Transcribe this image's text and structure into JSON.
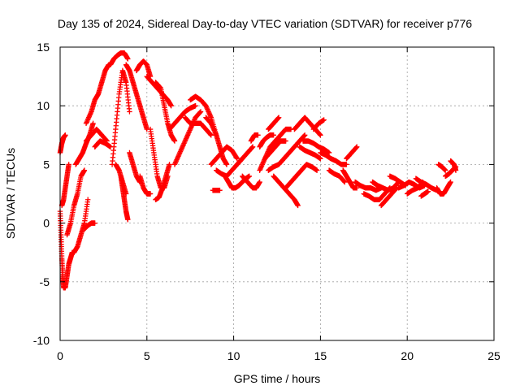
{
  "chart_data": {
    "type": "scatter",
    "title": "Day 135 of 2024, Sidereal Day-to-day VTEC variation (SDTVAR) for receiver p776",
    "xlabel": "GPS time / hours",
    "ylabel": "SDTVAR / TECUs",
    "xlim": [
      0,
      25
    ],
    "ylim": [
      -10,
      15
    ],
    "xticks": [
      "0",
      "5",
      "10",
      "15",
      "20",
      "25"
    ],
    "yticks": [
      "-10",
      "-5",
      "0",
      "5",
      "10",
      "15"
    ],
    "grid": true,
    "marker": "plus",
    "series": [
      {
        "name": "SDTVAR",
        "color": "#ff0000",
        "tracks": [
          {
            "x": [
              0.0,
              0.1,
              0.2,
              0.3
            ],
            "y": [
              6.0,
              6.8,
              7.3,
              7.5
            ]
          },
          {
            "x": [
              0.0,
              0.05,
              0.1,
              0.15,
              0.2,
              0.3,
              0.4,
              0.5,
              0.6,
              0.7,
              0.8
            ],
            "y": [
              1.0,
              -1.0,
              -3.0,
              -4.5,
              -5.5,
              -5.5,
              -4.5,
              -3.5,
              -3.0,
              -2.5,
              -2.5
            ]
          },
          {
            "x": [
              0.1,
              0.2,
              0.3,
              0.4,
              0.5
            ],
            "y": [
              1.5,
              2.0,
              3.0,
              4.0,
              5.0
            ]
          },
          {
            "x": [
              0.4,
              0.6,
              0.8,
              1.0,
              1.2,
              1.4
            ],
            "y": [
              -1.0,
              0.0,
              1.5,
              2.5,
              4.0,
              4.5
            ]
          },
          {
            "x": [
              0.8,
              1.0,
              1.2,
              1.4,
              1.6
            ],
            "y": [
              -2.5,
              -2.0,
              -1.0,
              0.0,
              2.0
            ]
          },
          {
            "x": [
              1.4,
              1.6,
              1.8,
              2.0
            ],
            "y": [
              -0.5,
              -0.2,
              0.0,
              0.0
            ]
          },
          {
            "x": [
              0.9,
              1.1,
              1.3,
              1.5,
              1.7,
              1.9
            ],
            "y": [
              5.0,
              5.5,
              6.0,
              6.8,
              7.5,
              8.5
            ]
          },
          {
            "x": [
              1.5,
              1.8,
              2.0,
              2.2,
              2.4,
              2.6,
              2.8
            ],
            "y": [
              8.5,
              9.5,
              10.5,
              11.0,
              12.0,
              13.0,
              13.5
            ]
          },
          {
            "x": [
              1.5,
              1.8,
              2.1,
              2.4,
              2.7
            ],
            "y": [
              7.0,
              7.5,
              8.0,
              7.5,
              7.0
            ]
          },
          {
            "x": [
              2.0,
              2.3,
              2.6,
              2.9
            ],
            "y": [
              6.5,
              7.0,
              6.8,
              6.5
            ]
          },
          {
            "x": [
              2.9,
              3.1,
              3.3,
              3.5,
              3.7,
              3.9
            ],
            "y": [
              13.5,
              14.0,
              14.3,
              14.5,
              14.5,
              14.0
            ]
          },
          {
            "x": [
              3.0,
              3.2,
              3.4,
              3.6,
              3.8,
              4.0
            ],
            "y": [
              5.0,
              8.0,
              11.0,
              13.0,
              12.0,
              9.5
            ]
          },
          {
            "x": [
              3.5,
              3.6,
              3.7,
              3.8,
              3.9
            ],
            "y": [
              4.0,
              3.0,
              2.0,
              1.0,
              0.3
            ]
          },
          {
            "x": [
              3.2,
              3.4,
              3.6,
              3.8
            ],
            "y": [
              5.0,
              4.5,
              3.5,
              2.5
            ]
          },
          {
            "x": [
              3.8,
              4.0,
              4.2,
              4.4,
              4.6,
              4.8,
              5.0
            ],
            "y": [
              13.5,
              13.0,
              12.0,
              11.0,
              10.0,
              9.0,
              8.0
            ]
          },
          {
            "x": [
              4.0,
              4.2,
              4.4,
              4.6
            ],
            "y": [
              6.0,
              5.0,
              4.0,
              3.5
            ]
          },
          {
            "x": [
              4.4,
              4.6,
              4.8,
              5.0,
              5.2
            ],
            "y": [
              13.0,
              13.5,
              13.8,
              13.5,
              12.5
            ]
          },
          {
            "x": [
              4.6,
              4.8,
              5.0,
              5.2
            ],
            "y": [
              4.0,
              3.0,
              2.5,
              2.5
            ]
          },
          {
            "x": [
              5.0,
              5.3,
              5.6,
              5.9,
              6.2,
              6.4
            ],
            "y": [
              12.5,
              12.0,
              11.5,
              11.0,
              10.5,
              10.0
            ]
          },
          {
            "x": [
              5.2,
              5.4,
              5.6,
              5.8,
              6.0,
              6.2
            ],
            "y": [
              8.0,
              6.0,
              4.0,
              3.0,
              3.0,
              4.0
            ]
          },
          {
            "x": [
              5.5,
              5.7,
              5.9,
              6.1,
              6.3
            ],
            "y": [
              2.0,
              2.2,
              3.0,
              4.0,
              5.0
            ]
          },
          {
            "x": [
              5.5,
              5.8,
              6.0,
              6.2,
              6.4,
              6.6
            ],
            "y": [
              12.0,
              11.5,
              10.0,
              8.5,
              7.5,
              7.0
            ]
          },
          {
            "x": [
              6.3,
              6.6,
              6.9,
              7.2,
              7.5,
              7.8
            ],
            "y": [
              8.0,
              8.5,
              9.0,
              9.5,
              9.8,
              10.0
            ]
          },
          {
            "x": [
              6.6,
              6.9,
              7.2,
              7.5,
              7.8,
              8.1
            ],
            "y": [
              5.0,
              6.0,
              7.0,
              8.0,
              9.0,
              9.5
            ]
          },
          {
            "x": [
              7.5,
              7.8,
              8.1,
              8.4,
              8.7,
              9.0
            ],
            "y": [
              10.5,
              10.8,
              10.5,
              10.0,
              9.0,
              7.5
            ]
          },
          {
            "x": [
              7.2,
              7.5,
              7.8,
              8.1,
              8.4,
              8.7
            ],
            "y": [
              9.0,
              8.5,
              8.5,
              8.5,
              8.0,
              7.5
            ]
          },
          {
            "x": [
              8.4,
              8.7,
              9.0,
              9.2,
              9.4,
              9.6
            ],
            "y": [
              9.0,
              8.5,
              7.5,
              6.5,
              5.5,
              5.0
            ]
          },
          {
            "x": [
              8.8,
              9.0,
              9.2
            ],
            "y": [
              2.8,
              2.8,
              2.8
            ]
          },
          {
            "x": [
              8.7,
              9.0,
              9.3,
              9.6,
              9.9,
              10.2
            ],
            "y": [
              5.0,
              5.5,
              6.0,
              6.5,
              6.2,
              5.5
            ]
          },
          {
            "x": [
              9.0,
              9.3,
              9.6,
              9.9,
              10.2,
              10.5
            ],
            "y": [
              4.5,
              4.2,
              4.0,
              4.5,
              5.0,
              5.5
            ]
          },
          {
            "x": [
              9.5,
              9.7,
              9.9,
              10.1,
              10.3,
              10.5,
              10.7,
              10.9
            ],
            "y": [
              4.0,
              3.5,
              3.0,
              3.0,
              3.2,
              3.5,
              3.8,
              4.0
            ]
          },
          {
            "x": [
              10.2,
              10.5,
              10.8,
              11.1
            ],
            "y": [
              5.0,
              5.5,
              6.0,
              6.5
            ]
          },
          {
            "x": [
              10.5,
              10.8,
              11.1,
              11.3,
              11.5
            ],
            "y": [
              4.0,
              3.5,
              3.0,
              3.0,
              3.5
            ]
          },
          {
            "x": [
              11.0,
              11.2,
              11.4
            ],
            "y": [
              7.0,
              7.5,
              7.5
            ]
          },
          {
            "x": [
              11.5,
              11.8,
              12.1,
              12.4,
              12.7,
              13.0,
              13.3
            ],
            "y": [
              4.5,
              5.5,
              6.5,
              7.0,
              7.5,
              8.0,
              8.0
            ]
          },
          {
            "x": [
              11.5,
              11.7,
              11.9,
              12.1,
              12.3
            ],
            "y": [
              6.5,
              7.0,
              7.3,
              7.5,
              7.5
            ]
          },
          {
            "x": [
              11.8,
              12.1,
              12.4,
              12.7,
              13.0
            ],
            "y": [
              5.5,
              6.0,
              6.5,
              7.0,
              7.0
            ]
          },
          {
            "x": [
              12.0,
              12.3,
              12.6
            ],
            "y": [
              8.0,
              8.5,
              9.0
            ]
          },
          {
            "x": [
              12.3,
              12.6,
              12.9,
              13.2,
              13.5,
              13.7
            ],
            "y": [
              4.0,
              3.5,
              3.0,
              2.5,
              2.0,
              1.5
            ]
          },
          {
            "x": [
              12.0,
              12.3,
              12.6,
              12.9,
              13.2,
              13.5,
              13.8,
              14.1
            ],
            "y": [
              4.5,
              4.8,
              5.0,
              5.5,
              6.0,
              6.5,
              7.0,
              7.5
            ]
          },
          {
            "x": [
              13.5,
              13.8,
              14.1,
              14.4,
              14.7,
              15.0
            ],
            "y": [
              8.0,
              8.5,
              9.0,
              8.5,
              8.0,
              7.5
            ]
          },
          {
            "x": [
              14.0,
              14.3,
              14.6,
              14.9,
              15.2,
              15.5
            ],
            "y": [
              7.0,
              7.0,
              6.8,
              6.5,
              6.3,
              6.0
            ]
          },
          {
            "x": [
              13.8,
              14.1,
              14.4,
              14.7,
              15.0
            ],
            "y": [
              6.5,
              6.2,
              6.0,
              5.8,
              5.5
            ]
          },
          {
            "x": [
              13.0,
              13.3,
              13.6,
              13.9,
              14.2,
              14.5,
              14.8
            ],
            "y": [
              3.0,
              3.5,
              4.0,
              4.5,
              5.0,
              4.8,
              4.5
            ]
          },
          {
            "x": [
              14.6,
              14.9,
              15.2
            ],
            "y": [
              8.0,
              8.5,
              8.8
            ]
          },
          {
            "x": [
              15.0,
              15.3,
              15.6,
              15.9,
              16.2,
              16.5
            ],
            "y": [
              6.0,
              5.8,
              5.5,
              5.3,
              5.0,
              5.0
            ]
          },
          {
            "x": [
              15.5,
              15.8,
              16.1,
              16.4
            ],
            "y": [
              4.5,
              4.2,
              4.0,
              3.5
            ]
          },
          {
            "x": [
              16.5,
              16.8,
              17.1
            ],
            "y": [
              5.5,
              6.0,
              6.5
            ]
          },
          {
            "x": [
              16.3,
              16.5,
              16.7,
              16.9,
              17.1
            ],
            "y": [
              4.5,
              4.0,
              3.5,
              3.0,
              3.0
            ]
          },
          {
            "x": [
              17.0,
              17.3,
              17.6,
              17.9,
              18.2,
              18.5
            ],
            "y": [
              3.5,
              3.2,
              3.0,
              3.0,
              2.8,
              3.0
            ]
          },
          {
            "x": [
              17.5,
              17.8,
              18.1,
              18.4,
              18.7,
              19.0
            ],
            "y": [
              2.5,
              2.3,
              2.0,
              2.0,
              2.5,
              3.0
            ]
          },
          {
            "x": [
              18.0,
              18.3,
              18.6,
              18.9,
              19.2,
              19.5
            ],
            "y": [
              3.5,
              3.2,
              3.0,
              2.8,
              3.0,
              3.5
            ]
          },
          {
            "x": [
              18.5,
              18.8,
              19.1,
              19.4
            ],
            "y": [
              1.5,
              2.0,
              2.5,
              3.0
            ]
          },
          {
            "x": [
              19.0,
              19.3,
              19.6,
              19.9
            ],
            "y": [
              4.0,
              3.8,
              3.5,
              3.2
            ]
          },
          {
            "x": [
              19.5,
              19.8,
              20.1,
              20.4,
              20.7,
              21.0
            ],
            "y": [
              3.0,
              3.2,
              3.5,
              3.3,
              3.0,
              3.2
            ]
          },
          {
            "x": [
              20.0,
              20.3,
              20.6,
              20.9
            ],
            "y": [
              2.5,
              2.8,
              3.0,
              3.5
            ]
          },
          {
            "x": [
              20.5,
              20.8,
              21.1,
              21.4,
              21.7
            ],
            "y": [
              3.8,
              3.5,
              3.3,
              3.0,
              2.8
            ]
          },
          {
            "x": [
              20.8,
              21.0,
              21.2
            ],
            "y": [
              2.3,
              2.5,
              2.7
            ]
          },
          {
            "x": [
              21.7,
              21.9,
              22.1,
              22.3,
              22.5
            ],
            "y": [
              3.0,
              2.5,
              2.5,
              3.0,
              3.5
            ]
          },
          {
            "x": [
              21.8,
              22.0,
              22.2
            ],
            "y": [
              5.0,
              4.8,
              4.5
            ]
          },
          {
            "x": [
              22.2,
              22.4,
              22.6,
              22.8
            ],
            "y": [
              4.0,
              4.2,
              4.5,
              4.8
            ]
          },
          {
            "x": [
              22.5,
              22.7,
              22.8
            ],
            "y": [
              5.3,
              5.0,
              4.5
            ]
          }
        ]
      }
    ]
  }
}
